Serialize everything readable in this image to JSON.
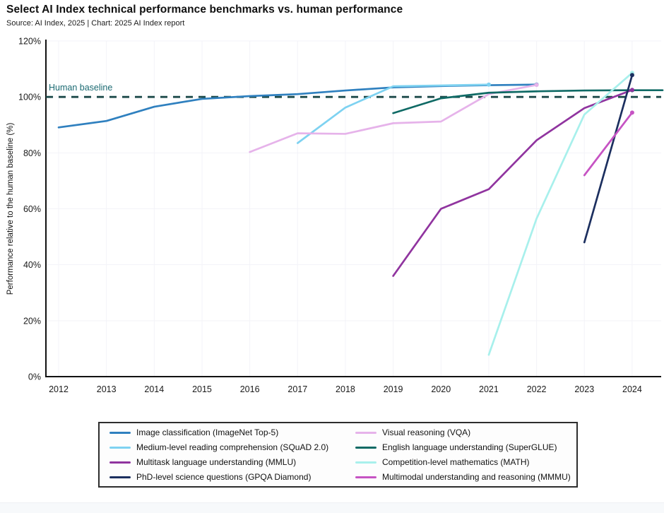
{
  "page": {
    "title": "Select AI Index technical performance benchmarks vs. human performance",
    "subtitle": "Source: AI Index, 2025 | Chart: 2025 AI Index report"
  },
  "chart_data": {
    "type": "line",
    "title": "Select AI Index technical performance benchmarks vs. human performance",
    "subtitle": "Source: AI Index, 2025 | Chart: 2025 AI Index report",
    "xlabel": "",
    "ylabel": "Performance relative to the human baseline (%)",
    "x_ticks": [
      2012,
      2013,
      2014,
      2015,
      2016,
      2017,
      2018,
      2019,
      2020,
      2021,
      2022,
      2023,
      2024
    ],
    "y_ticks": [
      0,
      20,
      40,
      60,
      80,
      100,
      120
    ],
    "y_tick_suffix": "%",
    "ylim": [
      0,
      120
    ],
    "xlim": [
      2011.73,
      2024.65
    ],
    "grid": true,
    "legend_position": "bottom",
    "baseline": {
      "value": 100,
      "label": "Human baseline",
      "line_color": "#1d4a4a",
      "label_color": "#1b6a72",
      "style": "dashed"
    },
    "colors": {
      "axis": "#111111",
      "tick_text": "#1a1a1a",
      "grid": "#f3f3f8"
    },
    "series": [
      {
        "id": "imagenet",
        "name": "Image classification (ImageNet Top-5)",
        "color": "#2f80bf",
        "x": [
          2012,
          2013,
          2014,
          2015,
          2016,
          2017,
          2018,
          2019,
          2020,
          2021,
          2022
        ],
        "values": [
          89.1,
          91.4,
          96.5,
          99.3,
          100.3,
          101.0,
          102.3,
          103.4,
          103.9,
          104.2,
          104.4
        ],
        "extend_to_right": false
      },
      {
        "id": "squad",
        "name": "Medium-level reading comprehension (SQuAD 2.0)",
        "color": "#7ed2f1",
        "x": [
          2017,
          2018,
          2019,
          2020,
          2021
        ],
        "values": [
          83.5,
          96.2,
          103.8,
          104.1,
          104.4
        ],
        "extend_to_right": false
      },
      {
        "id": "mmlu",
        "name": "Multitask language understanding (MMLU)",
        "color": "#90349f",
        "x": [
          2019,
          2020,
          2021,
          2022,
          2023,
          2024
        ],
        "values": [
          36.0,
          60.0,
          67.0,
          84.5,
          96.0,
          102.5
        ],
        "extend_to_right": false
      },
      {
        "id": "gpqa",
        "name": "PhD-level science questions (GPQA Diamond)",
        "color": "#1c2f5f",
        "x": [
          2023,
          2024
        ],
        "values": [
          48.0,
          107.8
        ],
        "extend_to_right": false
      },
      {
        "id": "vqa",
        "name": "Visual reasoning (VQA)",
        "color": "#e6b3ea",
        "x": [
          2016,
          2017,
          2018,
          2019,
          2020,
          2021,
          2022
        ],
        "values": [
          80.3,
          87.0,
          86.8,
          90.6,
          91.2,
          101.0,
          104.3
        ],
        "extend_to_right": false
      },
      {
        "id": "superglue",
        "name": "English language understanding (SuperGLUE)",
        "color": "#0f6a65",
        "x": [
          2019,
          2020,
          2021,
          2022,
          2023,
          2024
        ],
        "values": [
          94.2,
          99.5,
          101.5,
          102.0,
          102.3,
          102.4
        ],
        "extend_to_right": true
      },
      {
        "id": "math",
        "name": "Competition-level mathematics (MATH)",
        "color": "#a8f0ec",
        "x": [
          2021,
          2022,
          2023,
          2024
        ],
        "values": [
          7.8,
          56.5,
          93.7,
          108.6
        ],
        "extend_to_right": false
      },
      {
        "id": "mmmu",
        "name": "Multimodal understanding and reasoning (MMMU)",
        "color": "#c653c3",
        "x": [
          2023,
          2024
        ],
        "values": [
          72.0,
          94.4
        ],
        "extend_to_right": false
      }
    ],
    "draw_order": [
      "imagenet",
      "squad",
      "vqa",
      "superglue",
      "mmlu",
      "math",
      "gpqa",
      "mmmu"
    ],
    "legend_columns": {
      "left": [
        "imagenet",
        "squad",
        "mmlu",
        "gpqa"
      ],
      "right": [
        "vqa",
        "superglue",
        "math",
        "mmmu"
      ]
    }
  }
}
